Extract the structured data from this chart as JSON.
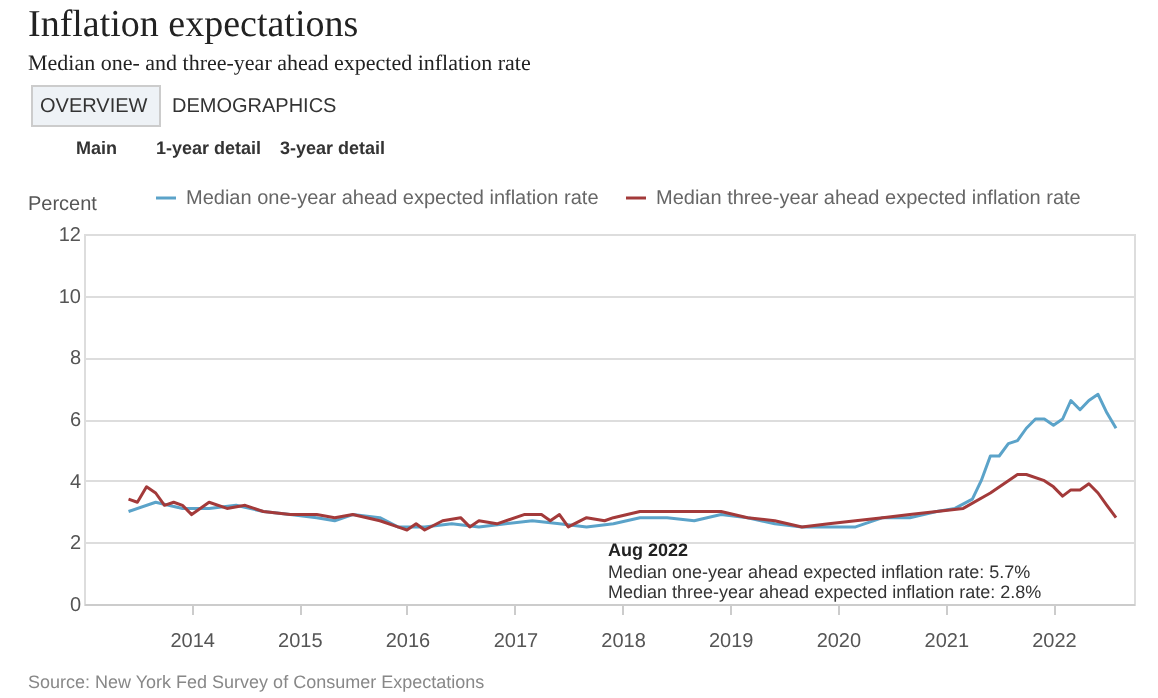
{
  "chart_data": {
    "type": "line",
    "title": "Inflation expectations",
    "subtitle": "Median one- and three-year ahead expected inflation rate",
    "ylabel": "Percent",
    "annotations": [
      "OVERVIEW",
      "DEMOGRAPHICS",
      "Main",
      "1-year detail",
      "3-year detail",
      "Aug 2022",
      "Median one-year ahead expected inflation rate: 5.7%",
      "Median three-year ahead expected inflation rate: 2.8%",
      "Source: New York Fed Survey of Consumer Expectations"
    ],
    "series": [
      {
        "name": "Median one-year ahead expected inflation rate",
        "color": "#5ba3c9",
        "x": [
          "2013-06",
          "2013-09",
          "2013-12",
          "2014-03",
          "2014-06",
          "2014-09",
          "2014-12",
          "2015-03",
          "2015-05",
          "2015-07",
          "2015-10",
          "2015-12",
          "2016-03",
          "2016-06",
          "2016-09",
          "2016-12",
          "2017-03",
          "2017-06",
          "2017-09",
          "2017-12",
          "2018-03",
          "2018-06",
          "2018-09",
          "2018-12",
          "2019-03",
          "2019-06",
          "2019-09",
          "2019-12",
          "2020-03",
          "2020-06",
          "2020-09",
          "2020-12",
          "2021-02",
          "2021-04",
          "2021-05",
          "2021-06",
          "2021-07",
          "2021-08",
          "2021-09",
          "2021-10",
          "2021-11",
          "2021-12",
          "2022-01",
          "2022-02",
          "2022-03",
          "2022-04",
          "2022-05",
          "2022-06",
          "2022-07",
          "2022-08"
        ],
        "values": [
          3.0,
          3.3,
          3.1,
          3.1,
          3.2,
          3.0,
          2.9,
          2.8,
          2.7,
          2.9,
          2.8,
          2.5,
          2.5,
          2.6,
          2.5,
          2.6,
          2.7,
          2.6,
          2.5,
          2.6,
          2.8,
          2.8,
          2.7,
          2.9,
          2.8,
          2.6,
          2.5,
          2.5,
          2.5,
          2.8,
          2.8,
          3.0,
          3.1,
          3.4,
          4.0,
          4.8,
          4.8,
          5.2,
          5.3,
          5.7,
          6.0,
          6.0,
          5.8,
          6.0,
          6.6,
          6.3,
          6.6,
          6.8,
          6.2,
          5.7
        ]
      },
      {
        "name": "Median three-year ahead expected inflation rate",
        "color": "#a33a3a",
        "x": [
          "2013-06",
          "2013-07",
          "2013-08",
          "2013-09",
          "2013-10",
          "2013-11",
          "2013-12",
          "2014-01",
          "2014-03",
          "2014-05",
          "2014-07",
          "2014-09",
          "2014-12",
          "2015-03",
          "2015-05",
          "2015-07",
          "2015-10",
          "2015-12",
          "2016-01",
          "2016-02",
          "2016-03",
          "2016-05",
          "2016-07",
          "2016-08",
          "2016-09",
          "2016-11",
          "2017-02",
          "2017-04",
          "2017-05",
          "2017-06",
          "2017-07",
          "2017-09",
          "2017-11",
          "2017-12",
          "2018-03",
          "2018-06",
          "2018-09",
          "2018-12",
          "2019-03",
          "2019-06",
          "2019-09",
          "2019-12",
          "2020-03",
          "2020-06",
          "2020-09",
          "2020-12",
          "2021-03",
          "2021-06",
          "2021-08",
          "2021-09",
          "2021-10",
          "2021-12",
          "2022-01",
          "2022-02",
          "2022-03",
          "2022-04",
          "2022-05",
          "2022-06",
          "2022-07",
          "2022-08"
        ],
        "values": [
          3.4,
          3.3,
          3.8,
          3.6,
          3.2,
          3.3,
          3.2,
          2.9,
          3.3,
          3.1,
          3.2,
          3.0,
          2.9,
          2.9,
          2.8,
          2.9,
          2.7,
          2.5,
          2.4,
          2.6,
          2.4,
          2.7,
          2.8,
          2.5,
          2.7,
          2.6,
          2.9,
          2.9,
          2.7,
          2.9,
          2.5,
          2.8,
          2.7,
          2.8,
          3.0,
          3.0,
          3.0,
          3.0,
          2.8,
          2.7,
          2.5,
          2.6,
          2.7,
          2.8,
          2.9,
          3.0,
          3.1,
          3.6,
          4.0,
          4.2,
          4.2,
          4.0,
          3.8,
          3.5,
          3.7,
          3.7,
          3.9,
          3.6,
          3.2,
          2.8
        ]
      }
    ],
    "xlim": [
      "2013-01",
      "2022-10"
    ],
    "xticks": [
      "2014",
      "2015",
      "2016",
      "2017",
      "2018",
      "2019",
      "2020",
      "2021",
      "2022"
    ],
    "ylim": [
      0,
      12
    ],
    "yticks": [
      0,
      2,
      4,
      6,
      8,
      10,
      12
    ],
    "grid": "y",
    "legend": "top right",
    "marker": "none",
    "line_style": "solid"
  }
}
